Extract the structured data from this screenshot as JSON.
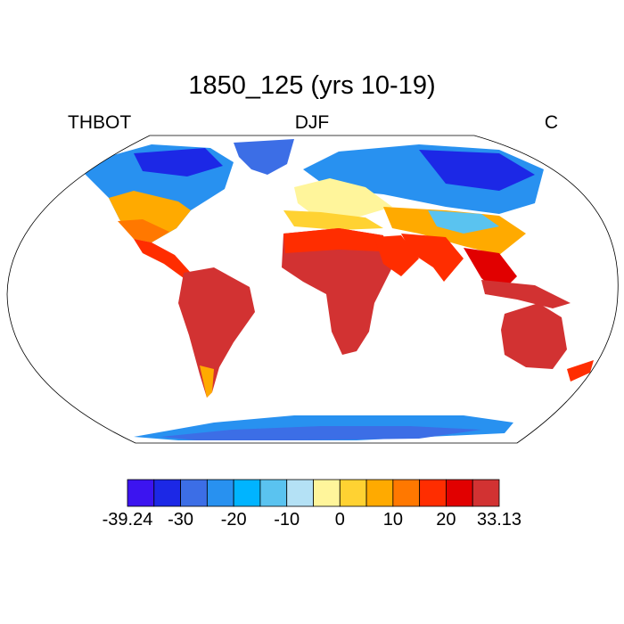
{
  "title": "1850_125 (yrs 10-19)",
  "left_label": "THBOT",
  "center_label": "DJF",
  "right_label": "C",
  "colorbar": {
    "colors": [
      "#3c14f0",
      "#1c28e6",
      "#3c6ee6",
      "#2891f0",
      "#00b4ff",
      "#5ac3f0",
      "#b4e1f5",
      "#fff59b",
      "#ffd232",
      "#ffaa00",
      "#ff7800",
      "#ff2d00",
      "#e10000",
      "#d23232"
    ],
    "tick_labels": [
      "-39.24",
      "-30",
      "-20",
      "-10",
      "0",
      "10",
      "20",
      "33.13"
    ]
  }
}
